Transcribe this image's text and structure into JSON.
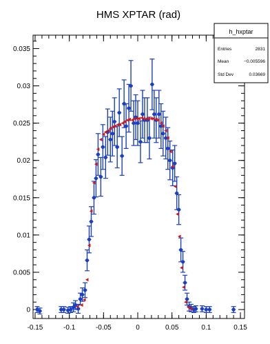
{
  "chart_data": {
    "type": "scatter",
    "title": "HMS XPTAR (rad)",
    "xlabel": "",
    "ylabel": "",
    "xlim": [
      -0.153,
      0.156
    ],
    "ylim": [
      -0.0012,
      0.0368
    ],
    "x_ticks": [
      "-0.15",
      "-0.1",
      "-0.05",
      "0",
      "0.05",
      "0.1",
      "0.15"
    ],
    "x_tick_values": [
      -0.15,
      -0.1,
      -0.05,
      0,
      0.05,
      0.1,
      0.15
    ],
    "y_ticks": [
      "0",
      "0.005",
      "0.01",
      "0.015",
      "0.02",
      "0.025",
      "0.03",
      "0.035"
    ],
    "y_tick_values": [
      0,
      0.005,
      0.01,
      0.015,
      0.02,
      0.025,
      0.03,
      0.035
    ],
    "grid": false,
    "series": [
      {
        "color": "#1a3fbf",
        "marker": "circle",
        "points": [
          {
            "x": -0.147,
            "y": 0.0,
            "err": 0.0004
          },
          {
            "x": -0.143,
            "y": -0.0002,
            "err": 0.0004
          },
          {
            "x": -0.112,
            "y": 0.0,
            "err": 0.0004
          },
          {
            "x": -0.108,
            "y": 0.0,
            "err": 0.0004
          },
          {
            "x": -0.102,
            "y": -0.0001,
            "err": 0.0004
          },
          {
            "x": -0.098,
            "y": 0.0,
            "err": 0.0004
          },
          {
            "x": -0.094,
            "y": 0.0003,
            "err": 0.0006
          },
          {
            "x": -0.091,
            "y": 0.0006,
            "err": 0.0006
          },
          {
            "x": -0.087,
            "y": 0.0001,
            "err": 0.0006
          },
          {
            "x": -0.084,
            "y": 0.0014,
            "err": 0.0008
          },
          {
            "x": -0.081,
            "y": 0.002,
            "err": 0.0009
          },
          {
            "x": -0.077,
            "y": 0.0026,
            "err": 0.001
          },
          {
            "x": -0.074,
            "y": 0.0066,
            "err": 0.0014
          },
          {
            "x": -0.071,
            "y": 0.0094,
            "err": 0.0018
          },
          {
            "x": -0.068,
            "y": 0.0118,
            "err": 0.002
          },
          {
            "x": -0.064,
            "y": 0.015,
            "err": 0.0022
          },
          {
            "x": -0.061,
            "y": 0.0176,
            "err": 0.0025
          },
          {
            "x": -0.058,
            "y": 0.0208,
            "err": 0.0028
          },
          {
            "x": -0.054,
            "y": 0.0178,
            "err": 0.0026
          },
          {
            "x": -0.051,
            "y": 0.0218,
            "err": 0.003
          },
          {
            "x": -0.047,
            "y": 0.0204,
            "err": 0.0028
          },
          {
            "x": -0.044,
            "y": 0.0238,
            "err": 0.0031
          },
          {
            "x": -0.04,
            "y": 0.0228,
            "err": 0.003
          },
          {
            "x": -0.037,
            "y": 0.0236,
            "err": 0.003
          },
          {
            "x": -0.034,
            "y": 0.0252,
            "err": 0.0032
          },
          {
            "x": -0.03,
            "y": 0.0218,
            "err": 0.0028
          },
          {
            "x": -0.027,
            "y": 0.0264,
            "err": 0.0032
          },
          {
            "x": -0.023,
            "y": 0.0206,
            "err": 0.0026
          },
          {
            "x": -0.02,
            "y": 0.0276,
            "err": 0.0032
          },
          {
            "x": -0.017,
            "y": 0.0246,
            "err": 0.003
          },
          {
            "x": -0.013,
            "y": 0.027,
            "err": 0.0032
          },
          {
            "x": -0.01,
            "y": 0.03,
            "err": 0.0034
          },
          {
            "x": -0.006,
            "y": 0.025,
            "err": 0.003
          },
          {
            "x": -0.003,
            "y": 0.0258,
            "err": 0.003
          },
          {
            "x": 0.0,
            "y": 0.025,
            "err": 0.003
          },
          {
            "x": 0.004,
            "y": 0.0225,
            "err": 0.0028
          },
          {
            "x": 0.007,
            "y": 0.0262,
            "err": 0.0032
          },
          {
            "x": 0.01,
            "y": 0.0254,
            "err": 0.003
          },
          {
            "x": 0.014,
            "y": 0.0254,
            "err": 0.003
          },
          {
            "x": 0.017,
            "y": 0.023,
            "err": 0.0028
          },
          {
            "x": 0.021,
            "y": 0.0302,
            "err": 0.0034
          },
          {
            "x": 0.024,
            "y": 0.0262,
            "err": 0.0032
          },
          {
            "x": 0.027,
            "y": 0.0254,
            "err": 0.003
          },
          {
            "x": 0.031,
            "y": 0.0262,
            "err": 0.0032
          },
          {
            "x": 0.034,
            "y": 0.0246,
            "err": 0.003
          },
          {
            "x": 0.037,
            "y": 0.0236,
            "err": 0.003
          },
          {
            "x": 0.041,
            "y": 0.023,
            "err": 0.0028
          },
          {
            "x": 0.044,
            "y": 0.0216,
            "err": 0.0028
          },
          {
            "x": 0.047,
            "y": 0.02,
            "err": 0.0026
          },
          {
            "x": 0.051,
            "y": 0.019,
            "err": 0.0024
          },
          {
            "x": 0.054,
            "y": 0.0196,
            "err": 0.0024
          },
          {
            "x": 0.057,
            "y": 0.0156,
            "err": 0.0022
          },
          {
            "x": 0.06,
            "y": 0.0134,
            "err": 0.002
          },
          {
            "x": 0.063,
            "y": 0.008,
            "err": 0.0016
          },
          {
            "x": 0.066,
            "y": 0.0064,
            "err": 0.0014
          },
          {
            "x": 0.069,
            "y": 0.0036,
            "err": 0.001
          },
          {
            "x": 0.072,
            "y": 0.0014,
            "err": 0.0008
          },
          {
            "x": 0.075,
            "y": 0.0004,
            "err": 0.0006
          },
          {
            "x": 0.078,
            "y": 0.0002,
            "err": 0.0005
          },
          {
            "x": 0.082,
            "y": 0.0,
            "err": 0.0004
          },
          {
            "x": 0.085,
            "y": 0.0001,
            "err": 0.0004
          },
          {
            "x": 0.094,
            "y": 0.0001,
            "err": 0.0004
          },
          {
            "x": 0.1,
            "y": 0.0,
            "err": 0.0004
          },
          {
            "x": 0.105,
            "y": 0.0,
            "err": 0.0004
          },
          {
            "x": 0.14,
            "y": 0.0,
            "err": 0.0004
          }
        ]
      },
      {
        "color": "#d01818",
        "marker": "triangle",
        "points": [
          {
            "x": -0.088,
            "y": 0.0004
          },
          {
            "x": -0.082,
            "y": 0.0006
          },
          {
            "x": -0.078,
            "y": 0.0013
          },
          {
            "x": -0.074,
            "y": 0.004
          },
          {
            "x": -0.071,
            "y": 0.0086
          },
          {
            "x": -0.068,
            "y": 0.0132
          },
          {
            "x": -0.064,
            "y": 0.017
          },
          {
            "x": -0.061,
            "y": 0.0195
          },
          {
            "x": -0.058,
            "y": 0.0215
          },
          {
            "x": -0.054,
            "y": 0.0228
          },
          {
            "x": -0.05,
            "y": 0.0235
          },
          {
            "x": -0.047,
            "y": 0.0238
          },
          {
            "x": -0.043,
            "y": 0.024
          },
          {
            "x": -0.04,
            "y": 0.0243
          },
          {
            "x": -0.036,
            "y": 0.0245
          },
          {
            "x": -0.033,
            "y": 0.0246
          },
          {
            "x": -0.029,
            "y": 0.0248
          },
          {
            "x": -0.026,
            "y": 0.0248
          },
          {
            "x": -0.022,
            "y": 0.025
          },
          {
            "x": -0.019,
            "y": 0.0252
          },
          {
            "x": -0.015,
            "y": 0.0254
          },
          {
            "x": -0.012,
            "y": 0.0255
          },
          {
            "x": -0.008,
            "y": 0.0254
          },
          {
            "x": -0.005,
            "y": 0.0256
          },
          {
            "x": -0.001,
            "y": 0.0256
          },
          {
            "x": 0.002,
            "y": 0.0256
          },
          {
            "x": 0.006,
            "y": 0.0257
          },
          {
            "x": 0.009,
            "y": 0.0256
          },
          {
            "x": 0.013,
            "y": 0.0256
          },
          {
            "x": 0.016,
            "y": 0.0256
          },
          {
            "x": 0.02,
            "y": 0.0256
          },
          {
            "x": 0.023,
            "y": 0.0256
          },
          {
            "x": 0.027,
            "y": 0.0255
          },
          {
            "x": 0.03,
            "y": 0.0254
          },
          {
            "x": 0.034,
            "y": 0.025
          },
          {
            "x": 0.037,
            "y": 0.0246
          },
          {
            "x": 0.041,
            "y": 0.024
          },
          {
            "x": 0.044,
            "y": 0.023
          },
          {
            "x": 0.048,
            "y": 0.0212
          },
          {
            "x": 0.051,
            "y": 0.0192
          },
          {
            "x": 0.055,
            "y": 0.0165
          },
          {
            "x": 0.058,
            "y": 0.0128
          },
          {
            "x": 0.061,
            "y": 0.0098
          },
          {
            "x": 0.064,
            "y": 0.0056
          },
          {
            "x": 0.067,
            "y": 0.003
          },
          {
            "x": 0.07,
            "y": 0.001
          },
          {
            "x": 0.074,
            "y": 0.0003
          },
          {
            "x": 0.078,
            "y": 0.0001
          }
        ]
      }
    ]
  },
  "stats_box": {
    "title": "h_hxptar",
    "rows": [
      {
        "label": "Entries",
        "value": "2831"
      },
      {
        "label": "Mean",
        "value": "−0.005596"
      },
      {
        "label": "Std Dev",
        "value": "0.03669"
      }
    ]
  }
}
